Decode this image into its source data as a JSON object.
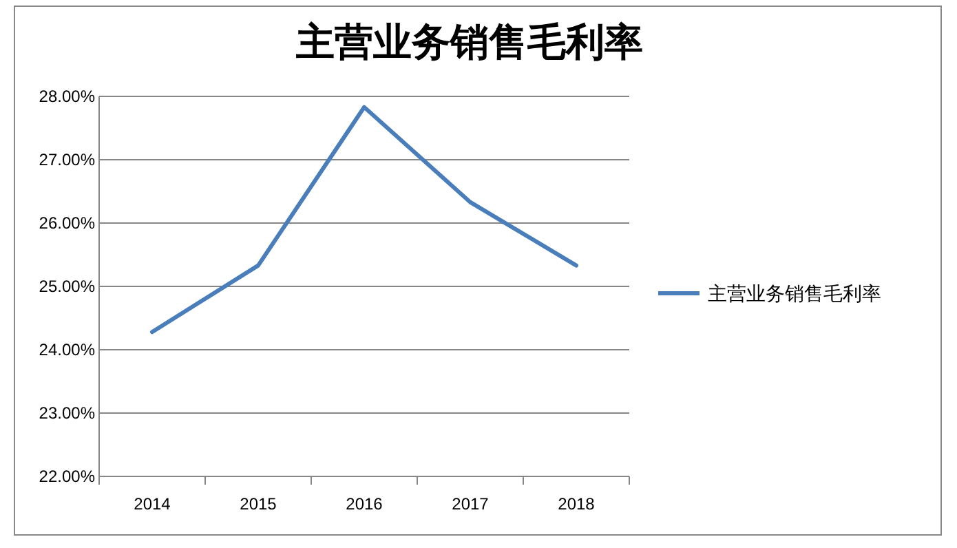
{
  "chart_data": {
    "type": "line",
    "title": "主营业务销售毛利率",
    "categories": [
      "2014",
      "2015",
      "2016",
      "2017",
      "2018"
    ],
    "series": [
      {
        "name": "主营业务销售毛利率",
        "color": "#4a7ebb",
        "values": [
          24.28,
          25.33,
          27.83,
          26.33,
          25.33
        ]
      }
    ],
    "ylim": [
      22,
      28
    ],
    "yticks": [
      {
        "value": 22,
        "label": "22.00%"
      },
      {
        "value": 23,
        "label": "23.00%"
      },
      {
        "value": 24,
        "label": "24.00%"
      },
      {
        "value": 25,
        "label": "25.00%"
      },
      {
        "value": 26,
        "label": "26.00%"
      },
      {
        "value": 27,
        "label": "27.00%"
      },
      {
        "value": 28,
        "label": "28.00%"
      }
    ],
    "grid": "y",
    "legend": "right",
    "marker": "none",
    "line_style": "solid"
  }
}
